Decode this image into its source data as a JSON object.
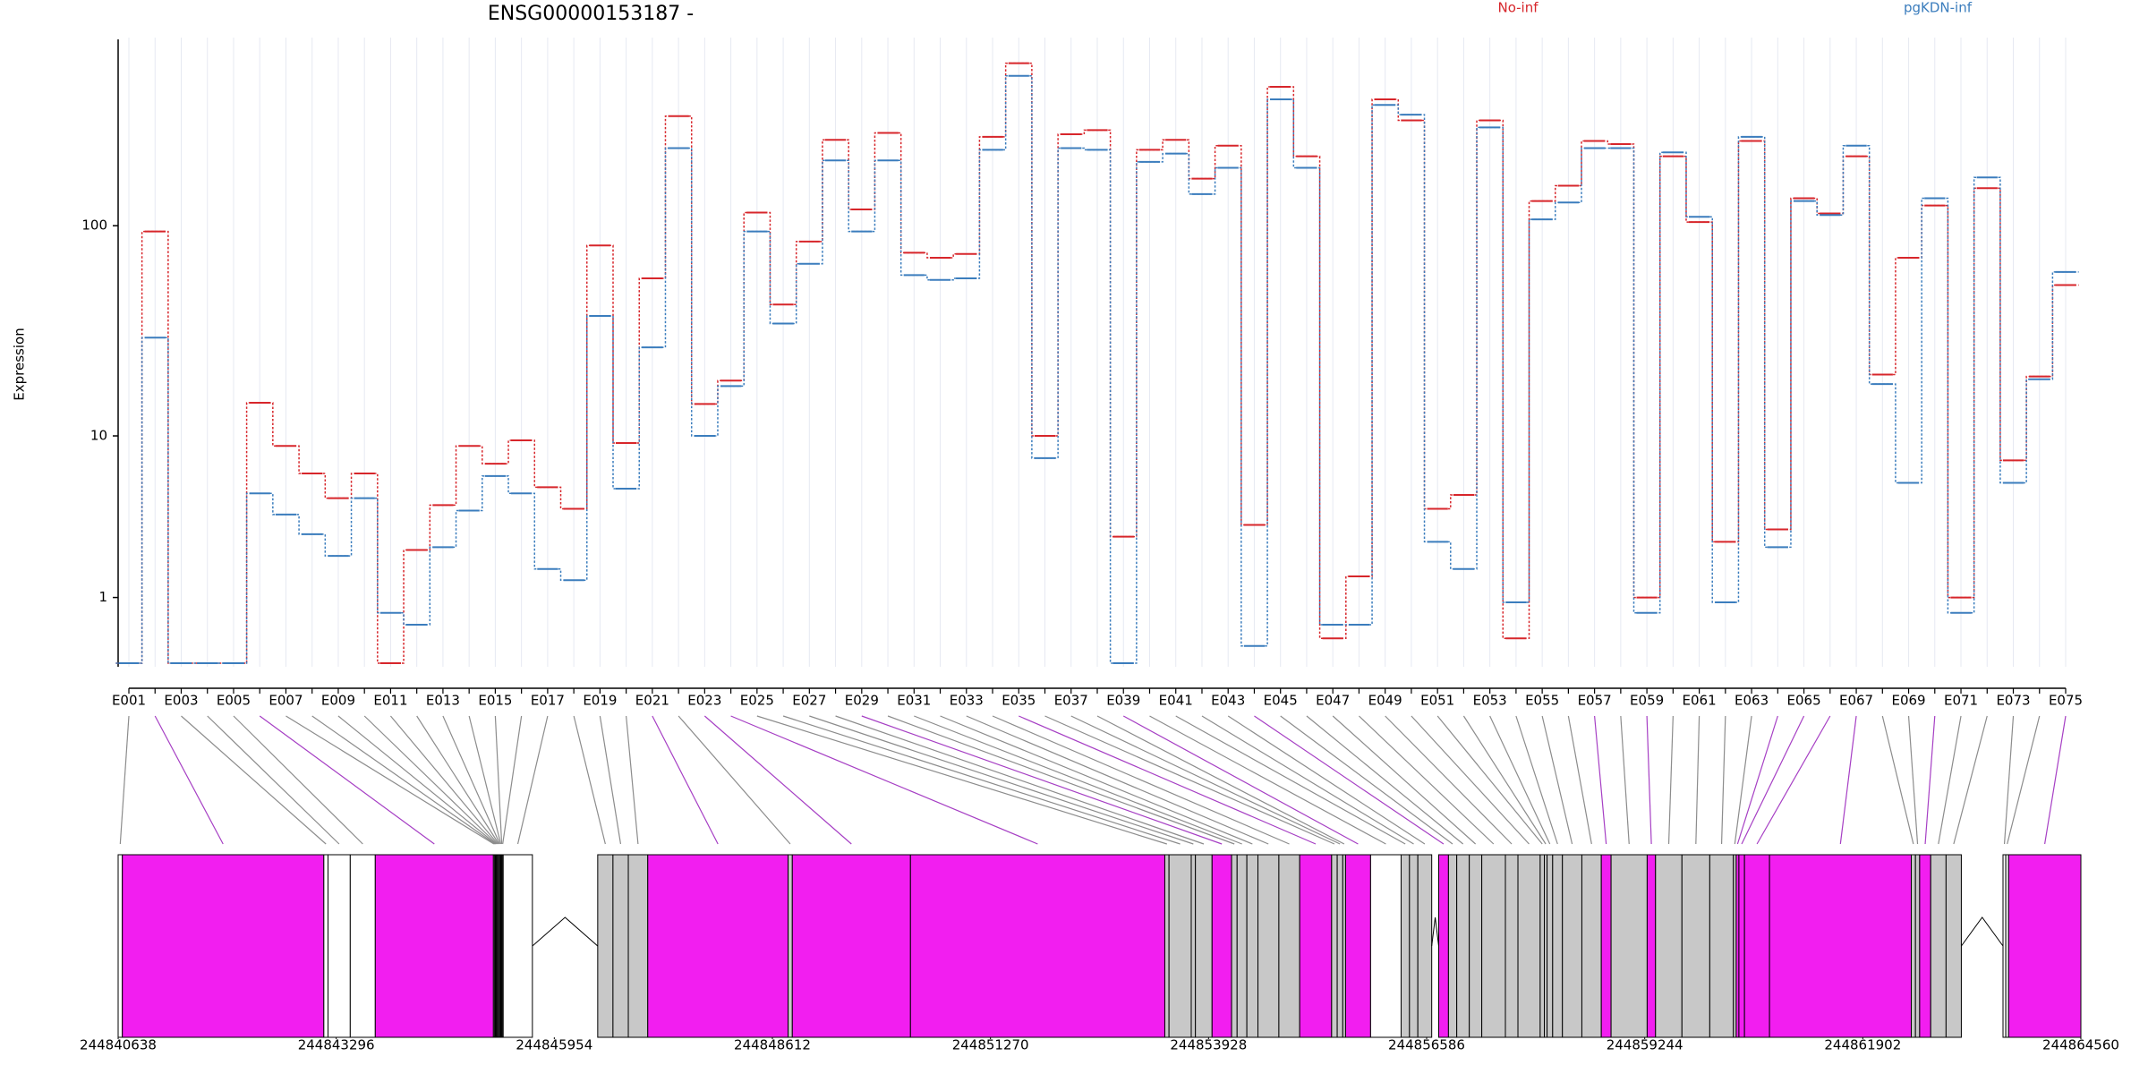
{
  "chart_data": [
    {
      "type": "step",
      "title": "ENSG00000153187 -",
      "y_label": "Expression",
      "yscale": "log1p",
      "ylim": [
        0,
        700
      ],
      "yticks": [
        1,
        10,
        100
      ],
      "grid": true,
      "legend": "top",
      "categories": [
        "E001",
        null,
        "E003",
        null,
        "E005",
        null,
        "E007",
        null,
        "E009",
        null,
        "E011",
        null,
        "E013",
        null,
        "E015",
        null,
        "E017",
        null,
        "E019",
        null,
        "E021",
        null,
        "E023",
        null,
        "E025",
        null,
        "E027",
        null,
        "E029",
        null,
        "E031",
        null,
        "E033",
        null,
        "E035",
        null,
        "E037",
        null,
        "E039",
        null,
        "E041",
        null,
        "E043",
        null,
        "E045",
        null,
        "E047",
        null,
        "E049",
        null,
        "E051",
        null,
        "E053",
        null,
        "E055",
        null,
        "E057",
        null,
        "E059",
        null,
        "E061",
        null,
        "E063",
        null,
        "E065",
        null,
        "E067",
        null,
        "E069",
        null,
        "E071",
        null,
        "E073",
        null,
        "E075"
      ],
      "series": [
        {
          "name": "No-inf",
          "color": "#d7262b",
          "values": [
            0,
            94,
            0,
            0,
            0,
            14.6,
            8.9,
            6.4,
            4.7,
            6.4,
            0,
            2.3,
            4.3,
            8.9,
            7.2,
            9.5,
            5.4,
            4.1,
            81,
            9.2,
            57,
            320,
            14.4,
            18.7,
            115,
            43,
            84.5,
            249,
            119,
            268,
            75,
            71,
            74,
            257,
            560,
            10,
            264,
            276,
            2.8,
            224,
            249,
            165,
            234,
            3.3,
            436,
            209,
            0.3,
            1.5,
            382,
            306,
            4.1,
            4.9,
            306,
            0.3,
            130,
            153,
            246,
            238,
            1.0,
            209,
            104,
            2.6,
            246,
            3.1,
            134,
            114,
            209,
            20,
            71,
            124,
            1.0,
            149,
            7.5,
            19.6,
            53
          ]
        },
        {
          "name": "pgKDN-inf",
          "color": "#3b7dbd",
          "values": [
            0,
            30,
            0,
            0,
            0,
            5,
            3.8,
            2.9,
            2.1,
            4.7,
            0.7,
            0.5,
            2.4,
            4.0,
            6.2,
            5.0,
            1.7,
            1.4,
            38,
            5.3,
            27,
            228,
            10,
            17.6,
            94,
            35,
            66.6,
            200,
            94,
            200,
            59,
            56,
            57,
            224,
            490,
            7.7,
            228,
            224,
            0,
            197,
            215,
            140,
            185,
            0.2,
            382,
            185,
            0.5,
            0.5,
            360,
            325,
            2.6,
            1.7,
            284,
            0.9,
            107,
            128,
            228,
            228,
            0.7,
            218,
            110,
            0.9,
            257,
            2.4,
            130,
            112,
            234,
            18,
            5.7,
            134,
            0.7,
            167,
            5.7,
            19,
            61
          ]
        }
      ]
    },
    {
      "type": "gene_model",
      "xlim": [
        244840638,
        244864560
      ],
      "xticks": [
        244840638,
        244843296,
        244845954,
        244848612,
        244851270,
        244853928,
        244856586,
        244859244,
        244861902,
        244864560
      ],
      "starts": [
        244840638,
        244840689,
        244843145,
        244843196,
        244843467,
        244843772,
        244845212,
        244845224,
        244845236,
        244845248,
        244845260,
        244845272,
        244845284,
        244845296,
        244845307,
        244845319,
        244845331,
        244846483,
        244846669,
        244846856,
        244847093,
        244848804,
        244848855,
        244850295,
        244853395,
        244853446,
        244853717,
        244853768,
        244853971,
        244854209,
        244854276,
        244854395,
        244854530,
        244854785,
        244855039,
        244855428,
        244855496,
        244855564,
        244855598,
        244855903,
        244856275,
        244856377,
        244856479,
        244856733,
        244856852,
        244856953,
        244857106,
        244857258,
        244857546,
        244857699,
        244857970,
        244858021,
        244858054,
        244858122,
        244858241,
        244858478,
        244858715,
        244858834,
        244859274,
        244859376,
        244859698,
        244860037,
        244860325,
        244860359,
        244860392,
        244860460,
        244860765,
        244862493,
        244862544,
        244862595,
        244862730,
        244862917,
        244863611,
        244863645,
        244863679
      ],
      "ends": [
        244840689,
        244843145,
        244843196,
        244843467,
        244843772,
        244845212,
        244845224,
        244845236,
        244845248,
        244845260,
        244845272,
        244845284,
        244845296,
        244845307,
        244845319,
        244845331,
        244845687,
        244846669,
        244846856,
        244847093,
        244848804,
        244848855,
        244850295,
        244853395,
        244853446,
        244853717,
        244853768,
        244853971,
        244854209,
        244854276,
        244854395,
        244854530,
        244854785,
        244855039,
        244855428,
        244855496,
        244855564,
        244855598,
        244855903,
        244856275,
        244856377,
        244856479,
        244856648,
        244856852,
        244856953,
        244857106,
        244857258,
        244857546,
        244857699,
        244857970,
        244858021,
        244858054,
        244858122,
        244858241,
        244858478,
        244858715,
        244858834,
        244859274,
        244859376,
        244859698,
        244860037,
        244860325,
        244860359,
        244860392,
        244860460,
        244860765,
        244862493,
        244862544,
        244862595,
        244862730,
        244862917,
        244863103,
        244863645,
        244863679,
        244864560
      ],
      "colors": [
        "#ffffff",
        "#f21ef0",
        "#ffffff",
        "#ffffff",
        "#ffffff",
        "#f21ef0",
        "#ffffff",
        "#ffffff",
        "#ffffff",
        "#ffffff",
        "#ffffff",
        "#ffffff",
        "#ffffff",
        "#ffffff",
        "#ffffff",
        "#ffffff",
        "#ffffff",
        "#c8c8c8",
        "#c8c8c8",
        "#c8c8c8",
        "#f21ef0",
        "#c8c8c8",
        "#f21ef0",
        "#f21ef0",
        "#c8c8c8",
        "#c8c8c8",
        "#c8c8c8",
        "#c8c8c8",
        "#f21ef0",
        "#c8c8c8",
        "#c8c8c8",
        "#c8c8c8",
        "#c8c8c8",
        "#c8c8c8",
        "#f21ef0",
        "#c8c8c8",
        "#c8c8c8",
        "#c8c8c8",
        "#f21ef0",
        "#ffffff",
        "#c8c8c8",
        "#c8c8c8",
        "#c8c8c8",
        "#f21ef0",
        "#c8c8c8",
        "#c8c8c8",
        "#c8c8c8",
        "#c8c8c8",
        "#c8c8c8",
        "#c8c8c8",
        "#c8c8c8",
        "#c8c8c8",
        "#c8c8c8",
        "#c8c8c8",
        "#c8c8c8",
        "#c8c8c8",
        "#f21ef0",
        "#c8c8c8",
        "#f21ef0",
        "#c8c8c8",
        "#c8c8c8",
        "#c8c8c8",
        "#c8c8c8",
        "#f21ef0",
        "#f21ef0",
        "#f21ef0",
        "#f21ef0",
        "#c8c8c8",
        "#c8c8c8",
        "#f21ef0",
        "#c8c8c8",
        "#c8c8c8",
        "#ffffff",
        "#ffffff",
        "#f21ef0"
      ]
    }
  ]
}
